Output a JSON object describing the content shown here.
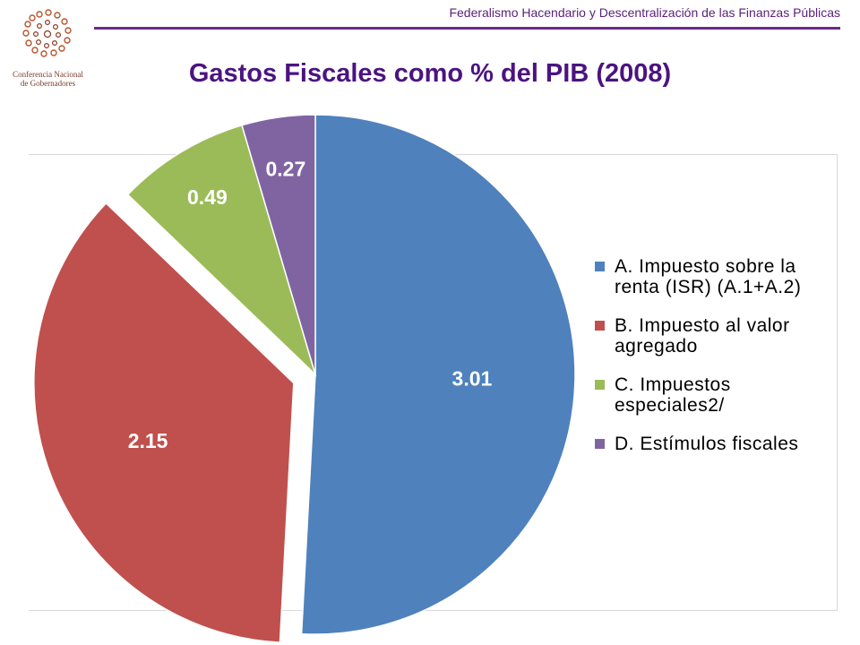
{
  "header": {
    "subtitle": "Federalismo Hacendario y Descentralización de las Finanzas Públicas",
    "logo_text_line1": "Conferencia Nacional",
    "logo_text_line2": "de Gobernadores"
  },
  "title": "Gastos Fiscales como % del PIB (2008)",
  "colors": {
    "A": "#4f81bd",
    "B": "#c0504d",
    "C": "#9bbb59",
    "D": "#8064a2",
    "title": "#4b1480",
    "rule": "#6a2a8a"
  },
  "chart_data": {
    "type": "pie",
    "title": "Gastos Fiscales como % del PIB (2008)",
    "legend_position": "right",
    "slices": [
      {
        "label": "A. Impuesto sobre la renta (ISR) (A.1+A.2)",
        "value": 3.01,
        "display": "3.01",
        "color": "#4f81bd"
      },
      {
        "label": "B. Impuesto al valor agregado",
        "value": 2.15,
        "display": "2.15",
        "color": "#c0504d",
        "exploded": true
      },
      {
        "label": "C. Impuestos especiales2/",
        "value": 0.49,
        "display": "0.49",
        "color": "#9bbb59"
      },
      {
        "label": "D. Estímulos fiscales",
        "value": 0.27,
        "display": "0.27",
        "color": "#8064a2"
      }
    ]
  }
}
